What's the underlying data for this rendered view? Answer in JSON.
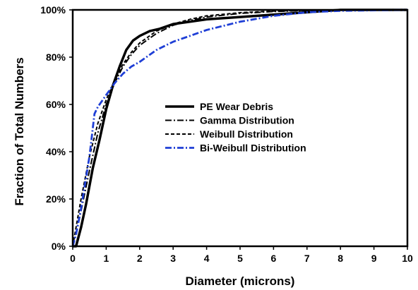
{
  "chart_data": {
    "type": "line",
    "title": "",
    "xlabel": "Diameter (microns)",
    "ylabel": "Fraction of Total Numbers",
    "xlim": [
      0,
      10
    ],
    "ylim": [
      0,
      100
    ],
    "x_ticks": [
      0,
      1,
      2,
      3,
      4,
      5,
      6,
      7,
      8,
      9,
      10
    ],
    "x_tick_labels": [
      "0",
      "1",
      "2",
      "3",
      "4",
      "5",
      "6",
      "7",
      "8",
      "9",
      "10"
    ],
    "y_ticks": [
      0,
      20,
      40,
      60,
      80,
      100
    ],
    "y_tick_labels": [
      "0%",
      "20%",
      "40%",
      "60%",
      "80%",
      "100%"
    ],
    "grid": false,
    "legend_position": "center-right",
    "series": [
      {
        "name": "PE Wear Debris",
        "color": "#000000",
        "style": "solid",
        "x": [
          0,
          0.1,
          0.25,
          0.4,
          0.6,
          0.8,
          1.0,
          1.2,
          1.4,
          1.6,
          1.8,
          2.0,
          2.3,
          2.6,
          3.0,
          3.5,
          4.0,
          5.0,
          6.0,
          7.0,
          8.0,
          10.0
        ],
        "y": [
          0,
          0,
          8,
          18,
          33,
          45,
          58,
          68,
          76,
          83,
          87,
          89,
          91,
          92,
          94,
          95,
          96,
          97,
          98,
          99,
          100,
          100
        ]
      },
      {
        "name": "Gamma Distribution",
        "color": "#000000",
        "style": "dashdot",
        "x": [
          0,
          0.1,
          0.25,
          0.5,
          0.75,
          1.0,
          1.25,
          1.5,
          1.75,
          2.0,
          2.5,
          3.0,
          3.5,
          4.0,
          5.0,
          6.0,
          7.0,
          8.0,
          10.0
        ],
        "y": [
          0,
          5,
          15,
          32,
          48,
          60,
          69,
          76,
          81,
          85,
          90,
          93.5,
          95.5,
          97,
          98.5,
          99.3,
          99.7,
          99.9,
          100
        ]
      },
      {
        "name": "Weibull Distribution",
        "color": "#000000",
        "style": "dashed",
        "x": [
          0,
          0.1,
          0.25,
          0.5,
          0.75,
          1.0,
          1.25,
          1.5,
          1.75,
          2.0,
          2.5,
          3.0,
          3.5,
          4.0,
          5.0,
          6.0,
          7.0,
          8.0,
          10.0
        ],
        "y": [
          0,
          8,
          20,
          38,
          52,
          62,
          70,
          77,
          82,
          86,
          91,
          94,
          96,
          97.5,
          98.8,
          99.5,
          99.8,
          100,
          100
        ]
      },
      {
        "name": "Bi-Weibull Distribution",
        "color": "#1f3fd6",
        "style": "dashdot",
        "x": [
          0,
          0.1,
          0.25,
          0.5,
          0.65,
          0.75,
          1.0,
          1.25,
          1.5,
          1.75,
          2.0,
          2.5,
          3.0,
          3.5,
          4.0,
          5.0,
          6.0,
          7.0,
          8.0,
          10.0
        ],
        "y": [
          0,
          5,
          16,
          38,
          56,
          59,
          64,
          69,
          73,
          76,
          78,
          83,
          86.5,
          89,
          91.5,
          95,
          97.5,
          99,
          99.6,
          100
        ]
      }
    ]
  }
}
